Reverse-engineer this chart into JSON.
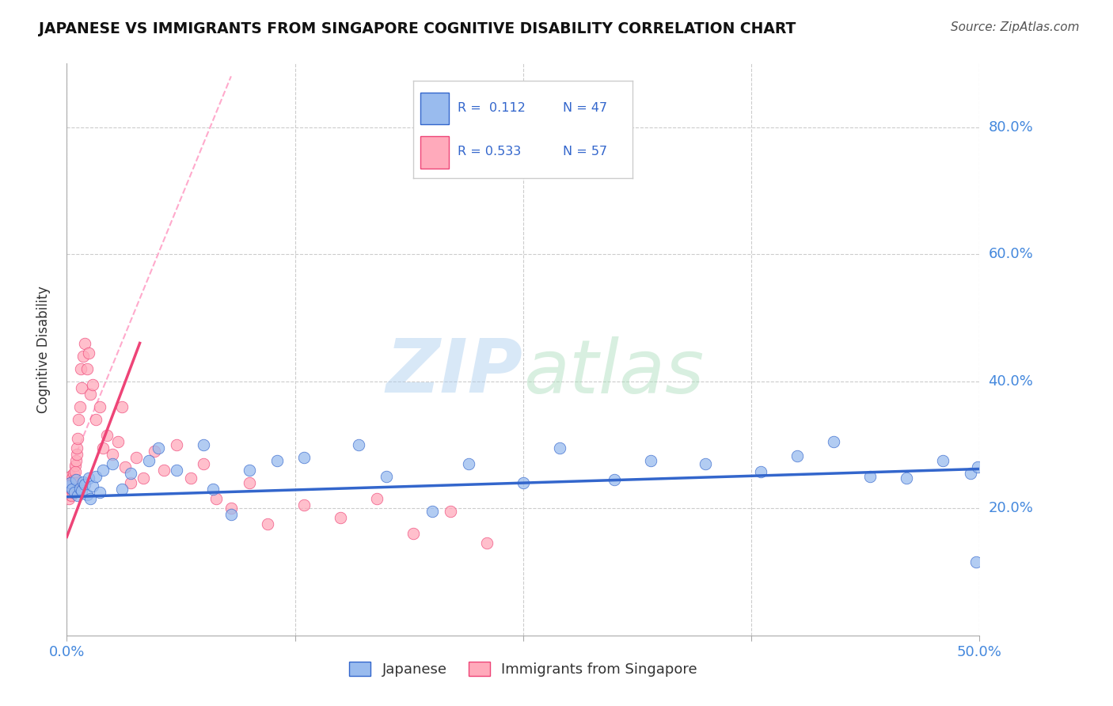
{
  "title": "JAPANESE VS IMMIGRANTS FROM SINGAPORE COGNITIVE DISABILITY CORRELATION CHART",
  "source": "Source: ZipAtlas.com",
  "ylabel_label": "Cognitive Disability",
  "xlim": [
    0.0,
    0.5
  ],
  "ylim": [
    0.0,
    0.9
  ],
  "watermark_text": "ZIPatlas",
  "legend_r1": "R =  0.112",
  "legend_n1": "N = 47",
  "legend_r2": "R = 0.533",
  "legend_n2": "N = 57",
  "blue_color": "#99BBEE",
  "pink_color": "#FFAABB",
  "blue_line_color": "#3366CC",
  "pink_line_color": "#EE4477",
  "pink_dash_color": "#FFAACC",
  "title_color": "#111111",
  "axis_tick_color": "#4488DD",
  "grid_color": "#CCCCCC",
  "japanese_x": [
    0.001,
    0.002,
    0.003,
    0.004,
    0.005,
    0.006,
    0.007,
    0.008,
    0.009,
    0.01,
    0.011,
    0.012,
    0.013,
    0.014,
    0.016,
    0.018,
    0.02,
    0.025,
    0.03,
    0.035,
    0.045,
    0.05,
    0.06,
    0.075,
    0.08,
    0.09,
    0.1,
    0.115,
    0.13,
    0.16,
    0.175,
    0.2,
    0.22,
    0.25,
    0.27,
    0.3,
    0.32,
    0.35,
    0.38,
    0.4,
    0.42,
    0.44,
    0.46,
    0.48,
    0.495,
    0.498,
    0.499
  ],
  "japanese_y": [
    0.235,
    0.24,
    0.23,
    0.225,
    0.245,
    0.22,
    0.232,
    0.228,
    0.242,
    0.238,
    0.222,
    0.248,
    0.215,
    0.235,
    0.25,
    0.225,
    0.26,
    0.27,
    0.23,
    0.255,
    0.275,
    0.295,
    0.26,
    0.3,
    0.23,
    0.19,
    0.26,
    0.275,
    0.28,
    0.3,
    0.25,
    0.195,
    0.27,
    0.24,
    0.295,
    0.245,
    0.275,
    0.27,
    0.258,
    0.282,
    0.305,
    0.25,
    0.248,
    0.275,
    0.255,
    0.115,
    0.265
  ],
  "singapore_x": [
    0.0008,
    0.001,
    0.0012,
    0.0015,
    0.0018,
    0.002,
    0.0022,
    0.0025,
    0.0028,
    0.003,
    0.0033,
    0.0035,
    0.0038,
    0.004,
    0.0042,
    0.0045,
    0.0048,
    0.005,
    0.0053,
    0.0055,
    0.006,
    0.0065,
    0.007,
    0.0075,
    0.008,
    0.009,
    0.01,
    0.011,
    0.012,
    0.013,
    0.014,
    0.016,
    0.018,
    0.02,
    0.022,
    0.025,
    0.028,
    0.03,
    0.032,
    0.035,
    0.038,
    0.042,
    0.048,
    0.053,
    0.06,
    0.068,
    0.075,
    0.082,
    0.09,
    0.1,
    0.11,
    0.13,
    0.15,
    0.17,
    0.19,
    0.21,
    0.23
  ],
  "singapore_y": [
    0.228,
    0.215,
    0.235,
    0.24,
    0.222,
    0.25,
    0.232,
    0.22,
    0.238,
    0.248,
    0.225,
    0.242,
    0.255,
    0.23,
    0.245,
    0.268,
    0.258,
    0.275,
    0.285,
    0.295,
    0.31,
    0.34,
    0.36,
    0.42,
    0.39,
    0.44,
    0.46,
    0.42,
    0.445,
    0.38,
    0.395,
    0.34,
    0.36,
    0.295,
    0.315,
    0.285,
    0.305,
    0.36,
    0.265,
    0.24,
    0.28,
    0.248,
    0.29,
    0.26,
    0.3,
    0.248,
    0.27,
    0.215,
    0.2,
    0.24,
    0.175,
    0.205,
    0.185,
    0.215,
    0.16,
    0.195,
    0.145
  ],
  "jap_line_x": [
    0.0,
    0.5
  ],
  "jap_line_y": [
    0.218,
    0.262
  ],
  "sing_line_x": [
    0.0,
    0.04
  ],
  "sing_line_y": [
    0.155,
    0.46
  ],
  "dash_line_x": [
    0.0,
    0.09
  ],
  "dash_line_y": [
    0.25,
    0.88
  ]
}
